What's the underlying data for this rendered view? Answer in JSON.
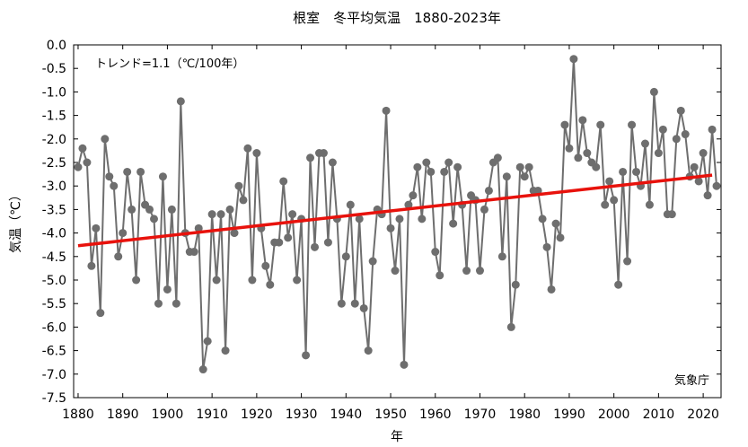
{
  "chart_data": {
    "type": "line",
    "title": "根室　冬平均気温　1880-2023年",
    "ylabel": "気温（℃）",
    "xlabel": "年",
    "annotation": "トレンド=1.1（℃/100年）",
    "credit": "気象庁",
    "xlim": [
      1879,
      2024
    ],
    "ylim": [
      -7.5,
      0.0
    ],
    "grid": false,
    "legend": "none",
    "x_ticks": [
      1880,
      1890,
      1900,
      1910,
      1920,
      1930,
      1940,
      1950,
      1960,
      1970,
      1980,
      1990,
      2000,
      2010,
      2020
    ],
    "y_ticks": [
      0.0,
      -0.5,
      -1.0,
      -1.5,
      -2.0,
      -2.5,
      -3.0,
      -3.5,
      -4.0,
      -4.5,
      -5.0,
      -5.5,
      -6.0,
      -6.5,
      -7.0,
      -7.5
    ],
    "x_start": 1880,
    "values": [
      -2.6,
      -2.2,
      -2.5,
      -4.7,
      -3.9,
      -5.7,
      -2.0,
      -2.8,
      -3.0,
      -4.5,
      -4.0,
      -2.7,
      -3.5,
      -5.0,
      -2.7,
      -3.4,
      -3.5,
      -3.7,
      -5.5,
      -2.8,
      -5.2,
      -3.5,
      -5.5,
      -1.2,
      -4.0,
      -4.4,
      -4.4,
      -3.9,
      -6.9,
      -6.3,
      -3.6,
      -5.0,
      -3.6,
      -6.5,
      -3.5,
      -4.0,
      -3.0,
      -3.3,
      -2.2,
      -5.0,
      -2.3,
      -3.9,
      -4.7,
      -5.1,
      -4.2,
      -4.2,
      -2.9,
      -4.1,
      -3.6,
      -5.0,
      -3.7,
      -6.6,
      -2.4,
      -4.3,
      -2.3,
      -2.3,
      -4.2,
      -2.5,
      -3.7,
      -5.5,
      -4.5,
      -3.4,
      -5.5,
      -3.7,
      -5.6,
      -6.5,
      -4.6,
      -3.5,
      -3.6,
      -1.4,
      -3.9,
      -4.8,
      -3.7,
      -6.8,
      -3.4,
      -3.2,
      -2.6,
      -3.7,
      -2.5,
      -2.7,
      -4.4,
      -4.9,
      -2.7,
      -2.5,
      -3.8,
      -2.6,
      -3.4,
      -4.8,
      -3.2,
      -3.3,
      -4.8,
      -3.5,
      -3.1,
      -2.5,
      -2.4,
      -4.5,
      -2.8,
      -6.0,
      -5.1,
      -2.6,
      -2.8,
      -2.6,
      -3.1,
      -3.1,
      -3.7,
      -4.3,
      -5.2,
      -3.8,
      -4.1,
      -1.7,
      -2.2,
      -0.3,
      -2.4,
      -1.6,
      -2.3,
      -2.5,
      -2.6,
      -1.7,
      -3.4,
      -2.9,
      -3.3,
      -5.1,
      -2.7,
      -4.6,
      -1.7,
      -2.7,
      -3.0,
      -2.1,
      -3.4,
      -1.0,
      -2.3,
      -1.8,
      -3.6,
      -3.6,
      -2.0,
      -1.4,
      -1.9,
      -2.8,
      -2.6,
      -2.9,
      -2.3,
      -3.2,
      -1.8,
      -3.0
    ],
    "trend": {
      "x": [
        1880,
        2022
      ],
      "y": [
        -4.27,
        -2.77
      ]
    },
    "colors": {
      "series": "#6e6e6e",
      "marker": "#6e6e6e",
      "trend": "#e8120c",
      "axis": "#000000"
    }
  }
}
